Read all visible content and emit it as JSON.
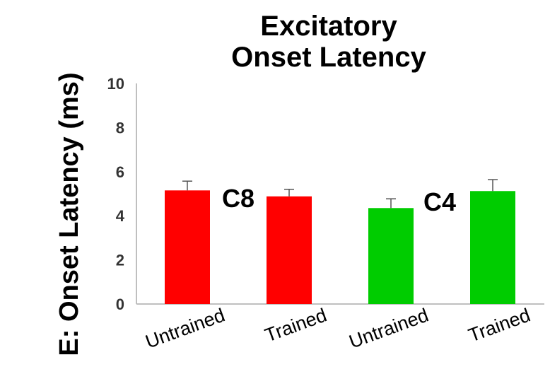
{
  "chart_data": {
    "type": "bar",
    "title_lines": [
      "Excitatory",
      "Onset Latency"
    ],
    "ylabel": "E: Onset Latency (ms)",
    "xlabel": "",
    "categories": [
      "Untrained",
      "Trained",
      "Untrained",
      "Trained"
    ],
    "values": [
      5.15,
      4.88,
      4.35,
      5.12
    ],
    "errors": [
      0.42,
      0.32,
      0.42,
      0.52
    ],
    "bar_colors": [
      "#ff0000",
      "#ff0000",
      "#00cc00",
      "#00cc00"
    ],
    "groups": [
      {
        "label": "C8",
        "categories_index": [
          0,
          1
        ]
      },
      {
        "label": "C4",
        "categories_index": [
          2,
          3
        ]
      }
    ],
    "ylim": [
      0,
      10
    ],
    "yticks": [
      0,
      2,
      4,
      6,
      8,
      10
    ],
    "grid": false,
    "legend": "none"
  }
}
